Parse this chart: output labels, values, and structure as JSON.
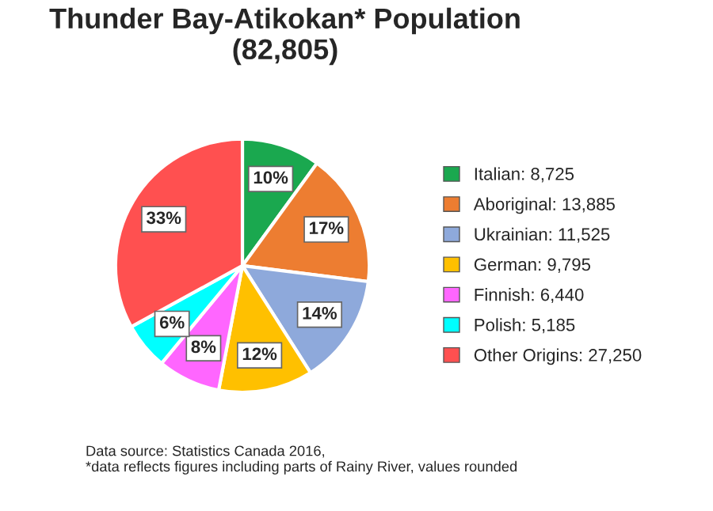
{
  "chart_data": {
    "type": "pie",
    "title": "Thunder Bay-Atikokan* Population\n(82,805)",
    "categories": [
      "Italian: 8,725",
      "Aboriginal: 13,885",
      "Ukrainian: 11,525",
      "German: 9,795",
      "Finnish: 6,440",
      "Polish: 5,185",
      "Other Origins: 27,250"
    ],
    "values": [
      10,
      17,
      14,
      12,
      8,
      6,
      33
    ],
    "value_labels": [
      "10%",
      "17%",
      "14%",
      "12%",
      "8%",
      "6%",
      "33%"
    ],
    "colors": [
      "#1aa84f",
      "#ed7d31",
      "#8ea9db",
      "#ffc000",
      "#ff66ff",
      "#00ffff",
      "#ff5050"
    ],
    "legend": "right",
    "annotations": [
      "Data source: Statistics Canada 2016,\n*data reflects figures including parts of Rainy River, values rounded"
    ]
  }
}
